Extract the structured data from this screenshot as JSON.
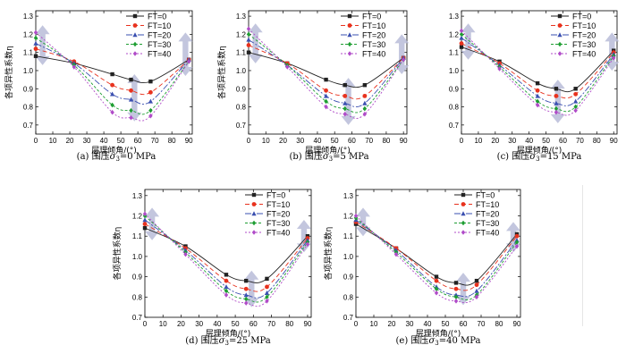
{
  "colors": {
    "FT=0": "#222222",
    "FT=10": "#e8321e",
    "FT=20": "#3a4fb0",
    "FT=30": "#1e9e32",
    "FT=40": "#b04bc8",
    "arrow": "#b8bcd8"
  },
  "chart_data": [
    {
      "type": "line",
      "caption_prefix": "(a) 围压",
      "caption_symbol": "σ",
      "caption_sub": "3",
      "caption_suffix": "=0 MPa",
      "xlabel": "层理倾角/(°)",
      "ylabel": "各项异性系数η",
      "x": [
        0,
        22.5,
        45,
        56,
        67.5,
        90
      ],
      "xticks": [
        0,
        10,
        20,
        30,
        40,
        50,
        60,
        70,
        80,
        90
      ],
      "yticks": [
        0.7,
        0.8,
        0.9,
        1.0,
        1.1,
        1.2,
        1.3
      ],
      "xlim": [
        0,
        92
      ],
      "ylim": [
        0.65,
        1.33
      ],
      "legend": "top-right",
      "series": [
        {
          "name": "FT=0",
          "values": [
            1.08,
            1.04,
            0.98,
            0.95,
            0.94,
            1.06
          ]
        },
        {
          "name": "FT=10",
          "values": [
            1.12,
            1.05,
            0.92,
            0.89,
            0.88,
            1.06
          ]
        },
        {
          "name": "FT=20",
          "values": [
            1.15,
            1.04,
            0.87,
            0.84,
            0.83,
            1.06
          ]
        },
        {
          "name": "FT=30",
          "values": [
            1.18,
            1.03,
            0.81,
            0.78,
            0.78,
            1.05
          ]
        },
        {
          "name": "FT=40",
          "values": [
            1.21,
            1.02,
            0.77,
            0.74,
            0.75,
            1.05
          ]
        }
      ],
      "arrows": [
        {
          "x": 4,
          "y1": 1.25,
          "y2": 1.03
        },
        {
          "x": 58,
          "y1": 0.98,
          "y2": 0.72
        },
        {
          "x": 88,
          "y1": 0.97,
          "y2": 1.21
        }
      ]
    },
    {
      "type": "line",
      "caption_prefix": "(b) 围压",
      "caption_symbol": "σ",
      "caption_sub": "3",
      "caption_suffix": "=5 MPa",
      "xlabel": "层理倾角/(°)",
      "ylabel": "各项异性系数η",
      "x": [
        0,
        22.5,
        45,
        56,
        67.5,
        90
      ],
      "xticks": [
        0,
        10,
        20,
        30,
        40,
        50,
        60,
        70,
        80,
        90
      ],
      "yticks": [
        0.7,
        0.8,
        0.9,
        1.0,
        1.1,
        1.2,
        1.3
      ],
      "xlim": [
        0,
        92
      ],
      "ylim": [
        0.65,
        1.33
      ],
      "legend": "top-right",
      "series": [
        {
          "name": "FT=0",
          "values": [
            1.1,
            1.04,
            0.95,
            0.92,
            0.92,
            1.07
          ]
        },
        {
          "name": "FT=10",
          "values": [
            1.14,
            1.04,
            0.89,
            0.86,
            0.86,
            1.07
          ]
        },
        {
          "name": "FT=20",
          "values": [
            1.17,
            1.03,
            0.86,
            0.82,
            0.82,
            1.07
          ]
        },
        {
          "name": "FT=30",
          "values": [
            1.2,
            1.03,
            0.83,
            0.79,
            0.79,
            1.06
          ]
        },
        {
          "name": "FT=40",
          "values": [
            1.23,
            1.02,
            0.8,
            0.76,
            0.76,
            1.06
          ]
        }
      ],
      "arrows": [
        {
          "x": 4,
          "y1": 1.26,
          "y2": 1.04
        },
        {
          "x": 58,
          "y1": 0.96,
          "y2": 0.7
        },
        {
          "x": 89,
          "y1": 0.98,
          "y2": 1.2
        }
      ]
    },
    {
      "type": "line",
      "caption_prefix": "(c) 围压",
      "caption_symbol": "σ",
      "caption_sub": "3",
      "caption_suffix": "=15 MPa",
      "xlabel": "层理倾角/(°)",
      "ylabel": "",
      "x": [
        0,
        22.5,
        45,
        56,
        67.5,
        90
      ],
      "xticks": [
        0,
        10,
        20,
        30,
        40,
        50,
        60,
        70,
        80,
        90
      ],
      "yticks": [
        0.7,
        0.8,
        0.9,
        1.0,
        1.1,
        1.2,
        1.3
      ],
      "xlim": [
        0,
        92
      ],
      "ylim": [
        0.65,
        1.33
      ],
      "legend": "top-right",
      "series": [
        {
          "name": "FT=0",
          "values": [
            1.13,
            1.05,
            0.93,
            0.9,
            0.9,
            1.11
          ]
        },
        {
          "name": "FT=10",
          "values": [
            1.15,
            1.04,
            0.89,
            0.86,
            0.87,
            1.1
          ]
        },
        {
          "name": "FT=20",
          "values": [
            1.18,
            1.03,
            0.86,
            0.82,
            0.83,
            1.09
          ]
        },
        {
          "name": "FT=30",
          "values": [
            1.2,
            1.02,
            0.83,
            0.79,
            0.8,
            1.08
          ]
        },
        {
          "name": "FT=40",
          "values": [
            1.22,
            1.01,
            0.81,
            0.77,
            0.78,
            1.07
          ]
        }
      ],
      "arrows": [
        {
          "x": 4,
          "y1": 1.26,
          "y2": 1.06
        },
        {
          "x": 57,
          "y1": 0.95,
          "y2": 0.71
        },
        {
          "x": 89,
          "y1": 1.0,
          "y2": 1.21
        }
      ]
    },
    {
      "type": "line",
      "caption_prefix": "(d) 围压",
      "caption_symbol": "σ",
      "caption_sub": "3",
      "caption_suffix": "=25 MPa",
      "xlabel": "层理倾角/(°)",
      "ylabel": "各项异性系数η",
      "x": [
        0,
        22.5,
        45,
        56,
        67.5,
        90
      ],
      "xticks": [
        0,
        10,
        20,
        30,
        40,
        50,
        60,
        70,
        80,
        90
      ],
      "yticks": [
        0.7,
        0.8,
        0.9,
        1.0,
        1.1,
        1.2,
        1.3
      ],
      "xlim": [
        0,
        92
      ],
      "ylim": [
        0.7,
        1.33
      ],
      "legend": "top-right",
      "series": [
        {
          "name": "FT=0",
          "values": [
            1.14,
            1.05,
            0.91,
            0.88,
            0.89,
            1.1
          ]
        },
        {
          "name": "FT=10",
          "values": [
            1.16,
            1.04,
            0.88,
            0.84,
            0.85,
            1.09
          ]
        },
        {
          "name": "FT=20",
          "values": [
            1.18,
            1.03,
            0.85,
            0.81,
            0.82,
            1.08
          ]
        },
        {
          "name": "FT=30",
          "values": [
            1.2,
            1.02,
            0.83,
            0.79,
            0.8,
            1.07
          ]
        },
        {
          "name": "FT=40",
          "values": [
            1.21,
            1.01,
            0.81,
            0.77,
            0.78,
            1.06
          ]
        }
      ],
      "arrows": [
        {
          "x": 4,
          "y1": 1.24,
          "y2": 1.08
        },
        {
          "x": 59,
          "y1": 0.93,
          "y2": 0.75
        },
        {
          "x": 88,
          "y1": 1.02,
          "y2": 1.18
        }
      ]
    },
    {
      "type": "line",
      "caption_prefix": "(e) 围压",
      "caption_symbol": "σ",
      "caption_sub": "3",
      "caption_suffix": "=40 MPa",
      "xlabel": "层理倾角/(°)",
      "ylabel": "各项异性系数η",
      "x": [
        0,
        22.5,
        45,
        56,
        67.5,
        90
      ],
      "xticks": [
        0,
        10,
        20,
        30,
        40,
        50,
        60,
        70,
        80,
        90
      ],
      "yticks": [
        0.7,
        0.8,
        0.9,
        1.0,
        1.1,
        1.2,
        1.3
      ],
      "xlim": [
        0,
        92
      ],
      "ylim": [
        0.7,
        1.33
      ],
      "legend": "top-right",
      "series": [
        {
          "name": "FT=0",
          "values": [
            1.16,
            1.04,
            0.9,
            0.87,
            0.88,
            1.11
          ]
        },
        {
          "name": "FT=10",
          "values": [
            1.17,
            1.04,
            0.88,
            0.84,
            0.86,
            1.1
          ]
        },
        {
          "name": "FT=20",
          "values": [
            1.18,
            1.03,
            0.85,
            0.81,
            0.83,
            1.08
          ]
        },
        {
          "name": "FT=30",
          "values": [
            1.19,
            1.02,
            0.84,
            0.8,
            0.81,
            1.07
          ]
        },
        {
          "name": "FT=40",
          "values": [
            1.2,
            1.01,
            0.82,
            0.78,
            0.8,
            1.05
          ]
        }
      ],
      "arrows": [
        {
          "x": 4,
          "y1": 1.24,
          "y2": 1.1
        },
        {
          "x": 60,
          "y1": 0.92,
          "y2": 0.76
        },
        {
          "x": 88,
          "y1": 1.02,
          "y2": 1.17
        }
      ]
    }
  ]
}
